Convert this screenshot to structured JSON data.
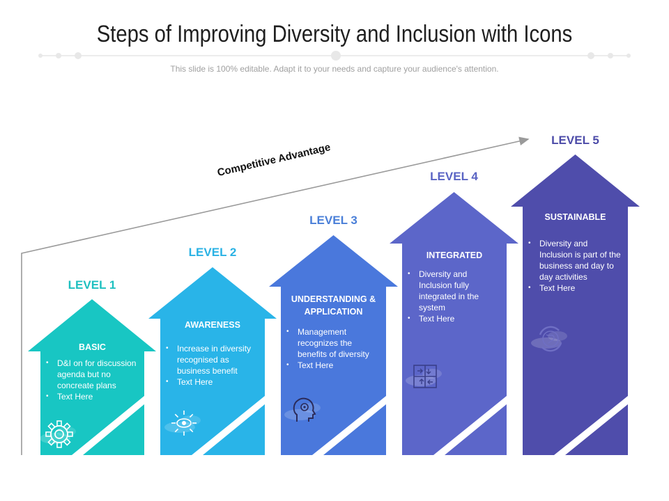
{
  "slide": {
    "title": "Steps of Improving Diversity and Inclusion with Icons",
    "subtitle": "This slide is 100% editable. Adapt it to your needs and capture your audience's attention."
  },
  "trend_label": "Competitive Advantage",
  "levels": [
    {
      "label": "LEVEL 1",
      "heading": "BASIC",
      "bullets": [
        "D&I on for discussion agenda but no concreate plans",
        "Text Here"
      ],
      "icon": "gear-icon",
      "color": "#18c6c3",
      "label_color": "#1ec0c0"
    },
    {
      "label": "LEVEL 2",
      "heading": "AWARENESS",
      "bullets": [
        "Increase in diversity recognised as business benefit",
        "Text Here"
      ],
      "icon": "eye-sun-icon",
      "color": "#29b4e8",
      "label_color": "#2ab2e4"
    },
    {
      "label": "LEVEL 3",
      "heading": "UNDERSTANDING & APPLICATION",
      "bullets": [
        "Management recognizes the benefits of diversity",
        "Text Here"
      ],
      "icon": "head-brain-icon",
      "color": "#4a78dc",
      "label_color": "#4a7fd8"
    },
    {
      "label": "LEVEL 4",
      "heading": "INTEGRATED",
      "bullets": [
        "Diversity and Inclusion fully integrated in the system",
        "Text Here"
      ],
      "icon": "puzzle-arrows-icon",
      "color": "#5c66c9",
      "label_color": "#5a64c4"
    },
    {
      "label": "LEVEL 5",
      "heading": "SUSTAINABLE",
      "bullets": [
        "Diversity and Inclusion is part of the business and day to day activities",
        "Text Here"
      ],
      "icon": "globe-cycle-icon",
      "color": "#4f4dab",
      "label_color": "#4c4ba8"
    }
  ]
}
